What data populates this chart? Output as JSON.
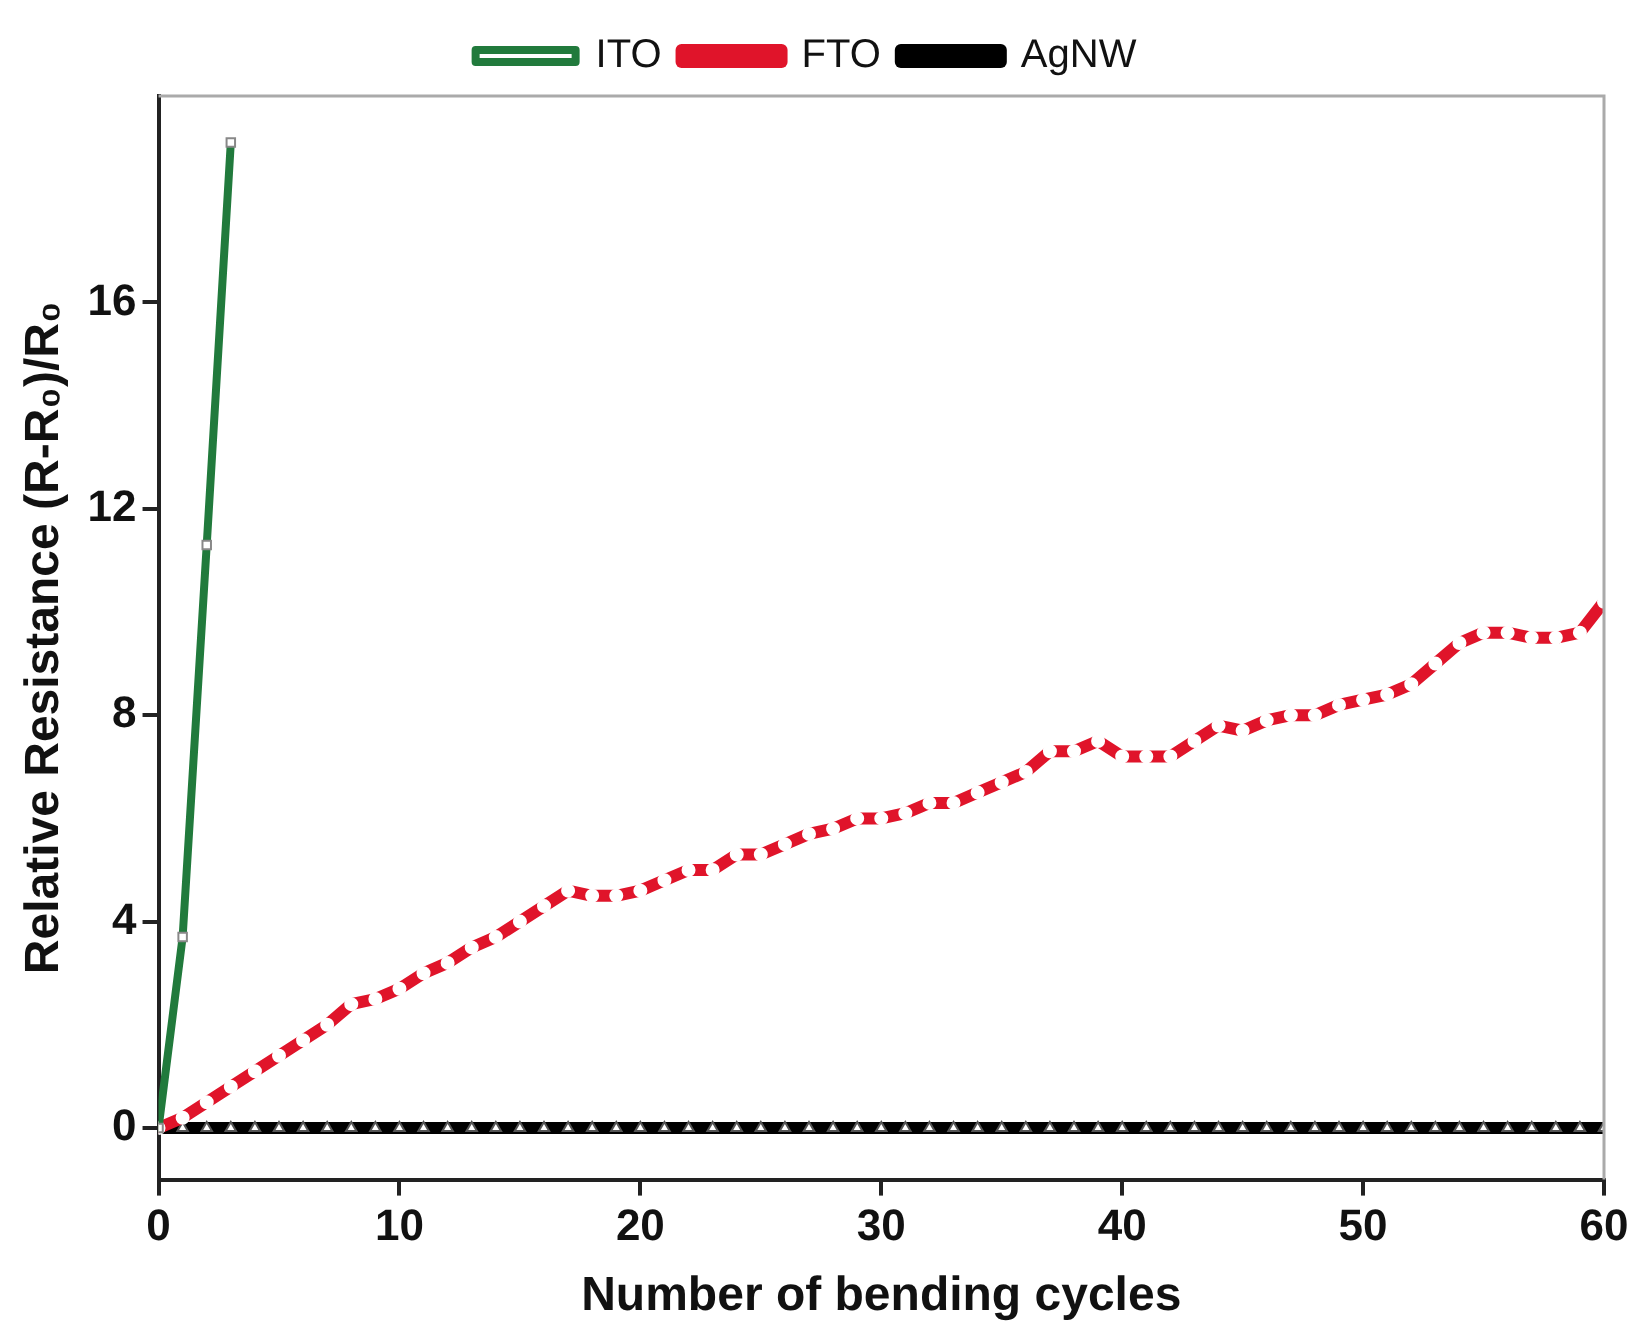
{
  "chart_data": {
    "type": "line",
    "xlabel": "Number of bending cycles",
    "ylabel": "Relative Resistance (R-R₀)/R₀",
    "xlim": [
      0,
      60
    ],
    "xticks": [
      0,
      10,
      20,
      30,
      40,
      50,
      60
    ],
    "ylim": [
      -1,
      20
    ],
    "yticks": [
      0,
      4,
      8,
      12,
      16
    ],
    "grid": false,
    "legend": "top",
    "line_style": "solid",
    "series": [
      {
        "name": "ITO",
        "color": "#217a3c",
        "marker": "square",
        "x": [
          0,
          1,
          2,
          3
        ],
        "values": [
          0,
          3.7,
          11.3,
          19.1
        ]
      },
      {
        "name": "FTO",
        "color": "#e0142a",
        "marker": "circle",
        "x": [
          0,
          1,
          2,
          3,
          4,
          5,
          6,
          7,
          8,
          9,
          10,
          11,
          12,
          13,
          14,
          15,
          16,
          17,
          18,
          19,
          20,
          21,
          22,
          23,
          24,
          25,
          26,
          27,
          28,
          29,
          30,
          31,
          32,
          33,
          34,
          35,
          36,
          37,
          38,
          39,
          40,
          41,
          42,
          43,
          44,
          45,
          46,
          47,
          48,
          49,
          50,
          51,
          52,
          53,
          54,
          55,
          56,
          57,
          58,
          59,
          60
        ],
        "values": [
          0,
          0.2,
          0.5,
          0.8,
          1.1,
          1.4,
          1.7,
          2.0,
          2.4,
          2.5,
          2.7,
          3.0,
          3.2,
          3.5,
          3.7,
          4.0,
          4.3,
          4.6,
          4.5,
          4.5,
          4.6,
          4.8,
          5.0,
          5.0,
          5.3,
          5.3,
          5.5,
          5.7,
          5.8,
          6.0,
          6.0,
          6.1,
          6.3,
          6.3,
          6.5,
          6.7,
          6.9,
          7.3,
          7.3,
          7.5,
          7.2,
          7.2,
          7.2,
          7.5,
          7.8,
          7.7,
          7.9,
          8.0,
          8.0,
          8.2,
          8.3,
          8.4,
          8.6,
          9.0,
          9.4,
          9.6,
          9.6,
          9.5,
          9.5,
          9.6,
          10.2
        ]
      },
      {
        "name": "AgNW",
        "color": "#000000",
        "marker": "triangle",
        "x": [
          0,
          1,
          2,
          3,
          4,
          5,
          6,
          7,
          8,
          9,
          10,
          11,
          12,
          13,
          14,
          15,
          16,
          17,
          18,
          19,
          20,
          21,
          22,
          23,
          24,
          25,
          26,
          27,
          28,
          29,
          30,
          31,
          32,
          33,
          34,
          35,
          36,
          37,
          38,
          39,
          40,
          41,
          42,
          43,
          44,
          45,
          46,
          47,
          48,
          49,
          50,
          51,
          52,
          53,
          54,
          55,
          56,
          57,
          58,
          59,
          60
        ],
        "values": [
          0,
          0,
          0,
          0,
          0,
          0,
          0,
          0,
          0,
          0,
          0,
          0,
          0,
          0,
          0,
          0,
          0,
          0,
          0,
          0,
          0,
          0,
          0,
          0,
          0,
          0,
          0,
          0,
          0,
          0,
          0,
          0,
          0,
          0,
          0,
          0,
          0,
          0,
          0,
          0,
          0,
          0,
          0,
          0,
          0,
          0,
          0,
          0,
          0,
          0,
          0,
          0,
          0,
          0,
          0,
          0,
          0,
          0,
          0,
          0,
          0
        ]
      }
    ]
  }
}
